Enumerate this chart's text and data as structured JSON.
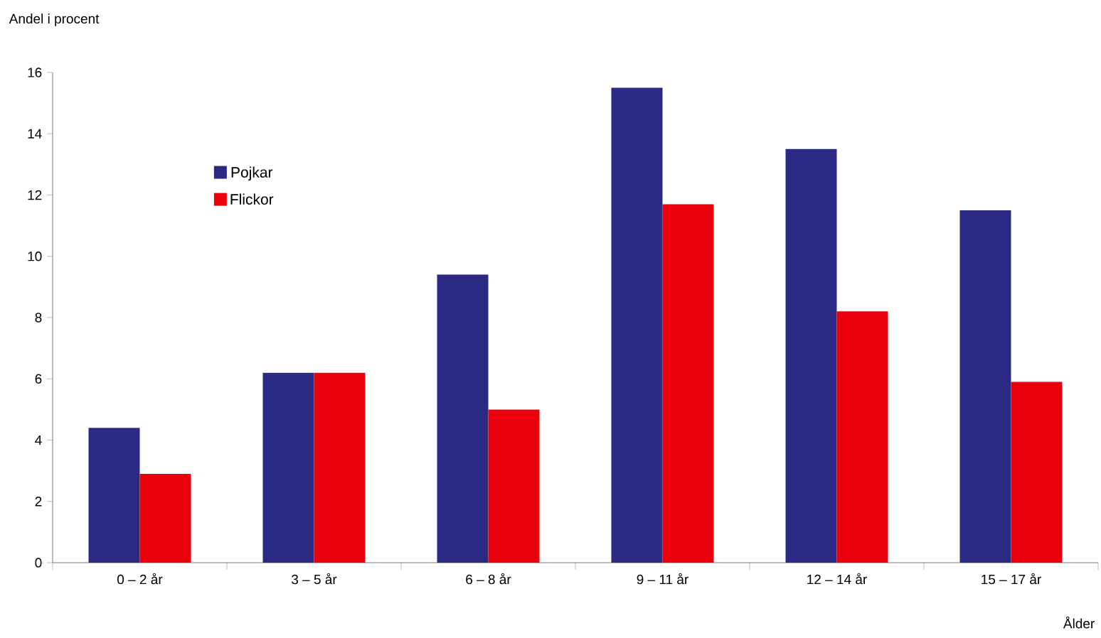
{
  "chart_data": {
    "type": "bar",
    "ylabel": "Andel i procent",
    "xlabel": "Ålder",
    "categories": [
      "0 – 2 år",
      "3 – 5 år",
      "6 – 8 år",
      "9 – 11 år",
      "12 – 14 år",
      "15 – 17 år"
    ],
    "series": [
      {
        "name": "Pojkar",
        "color": "#2a2a84",
        "values": [
          4.4,
          6.2,
          9.4,
          15.5,
          13.5,
          11.5
        ]
      },
      {
        "name": "Flickor",
        "color": "#e8000b",
        "values": [
          2.9,
          6.2,
          5.0,
          11.7,
          8.2,
          5.9
        ]
      }
    ],
    "ylim": [
      0,
      16
    ],
    "yticks": [
      0,
      2,
      4,
      6,
      8,
      10,
      12,
      14,
      16
    ],
    "grid": false,
    "legend": "top left"
  }
}
